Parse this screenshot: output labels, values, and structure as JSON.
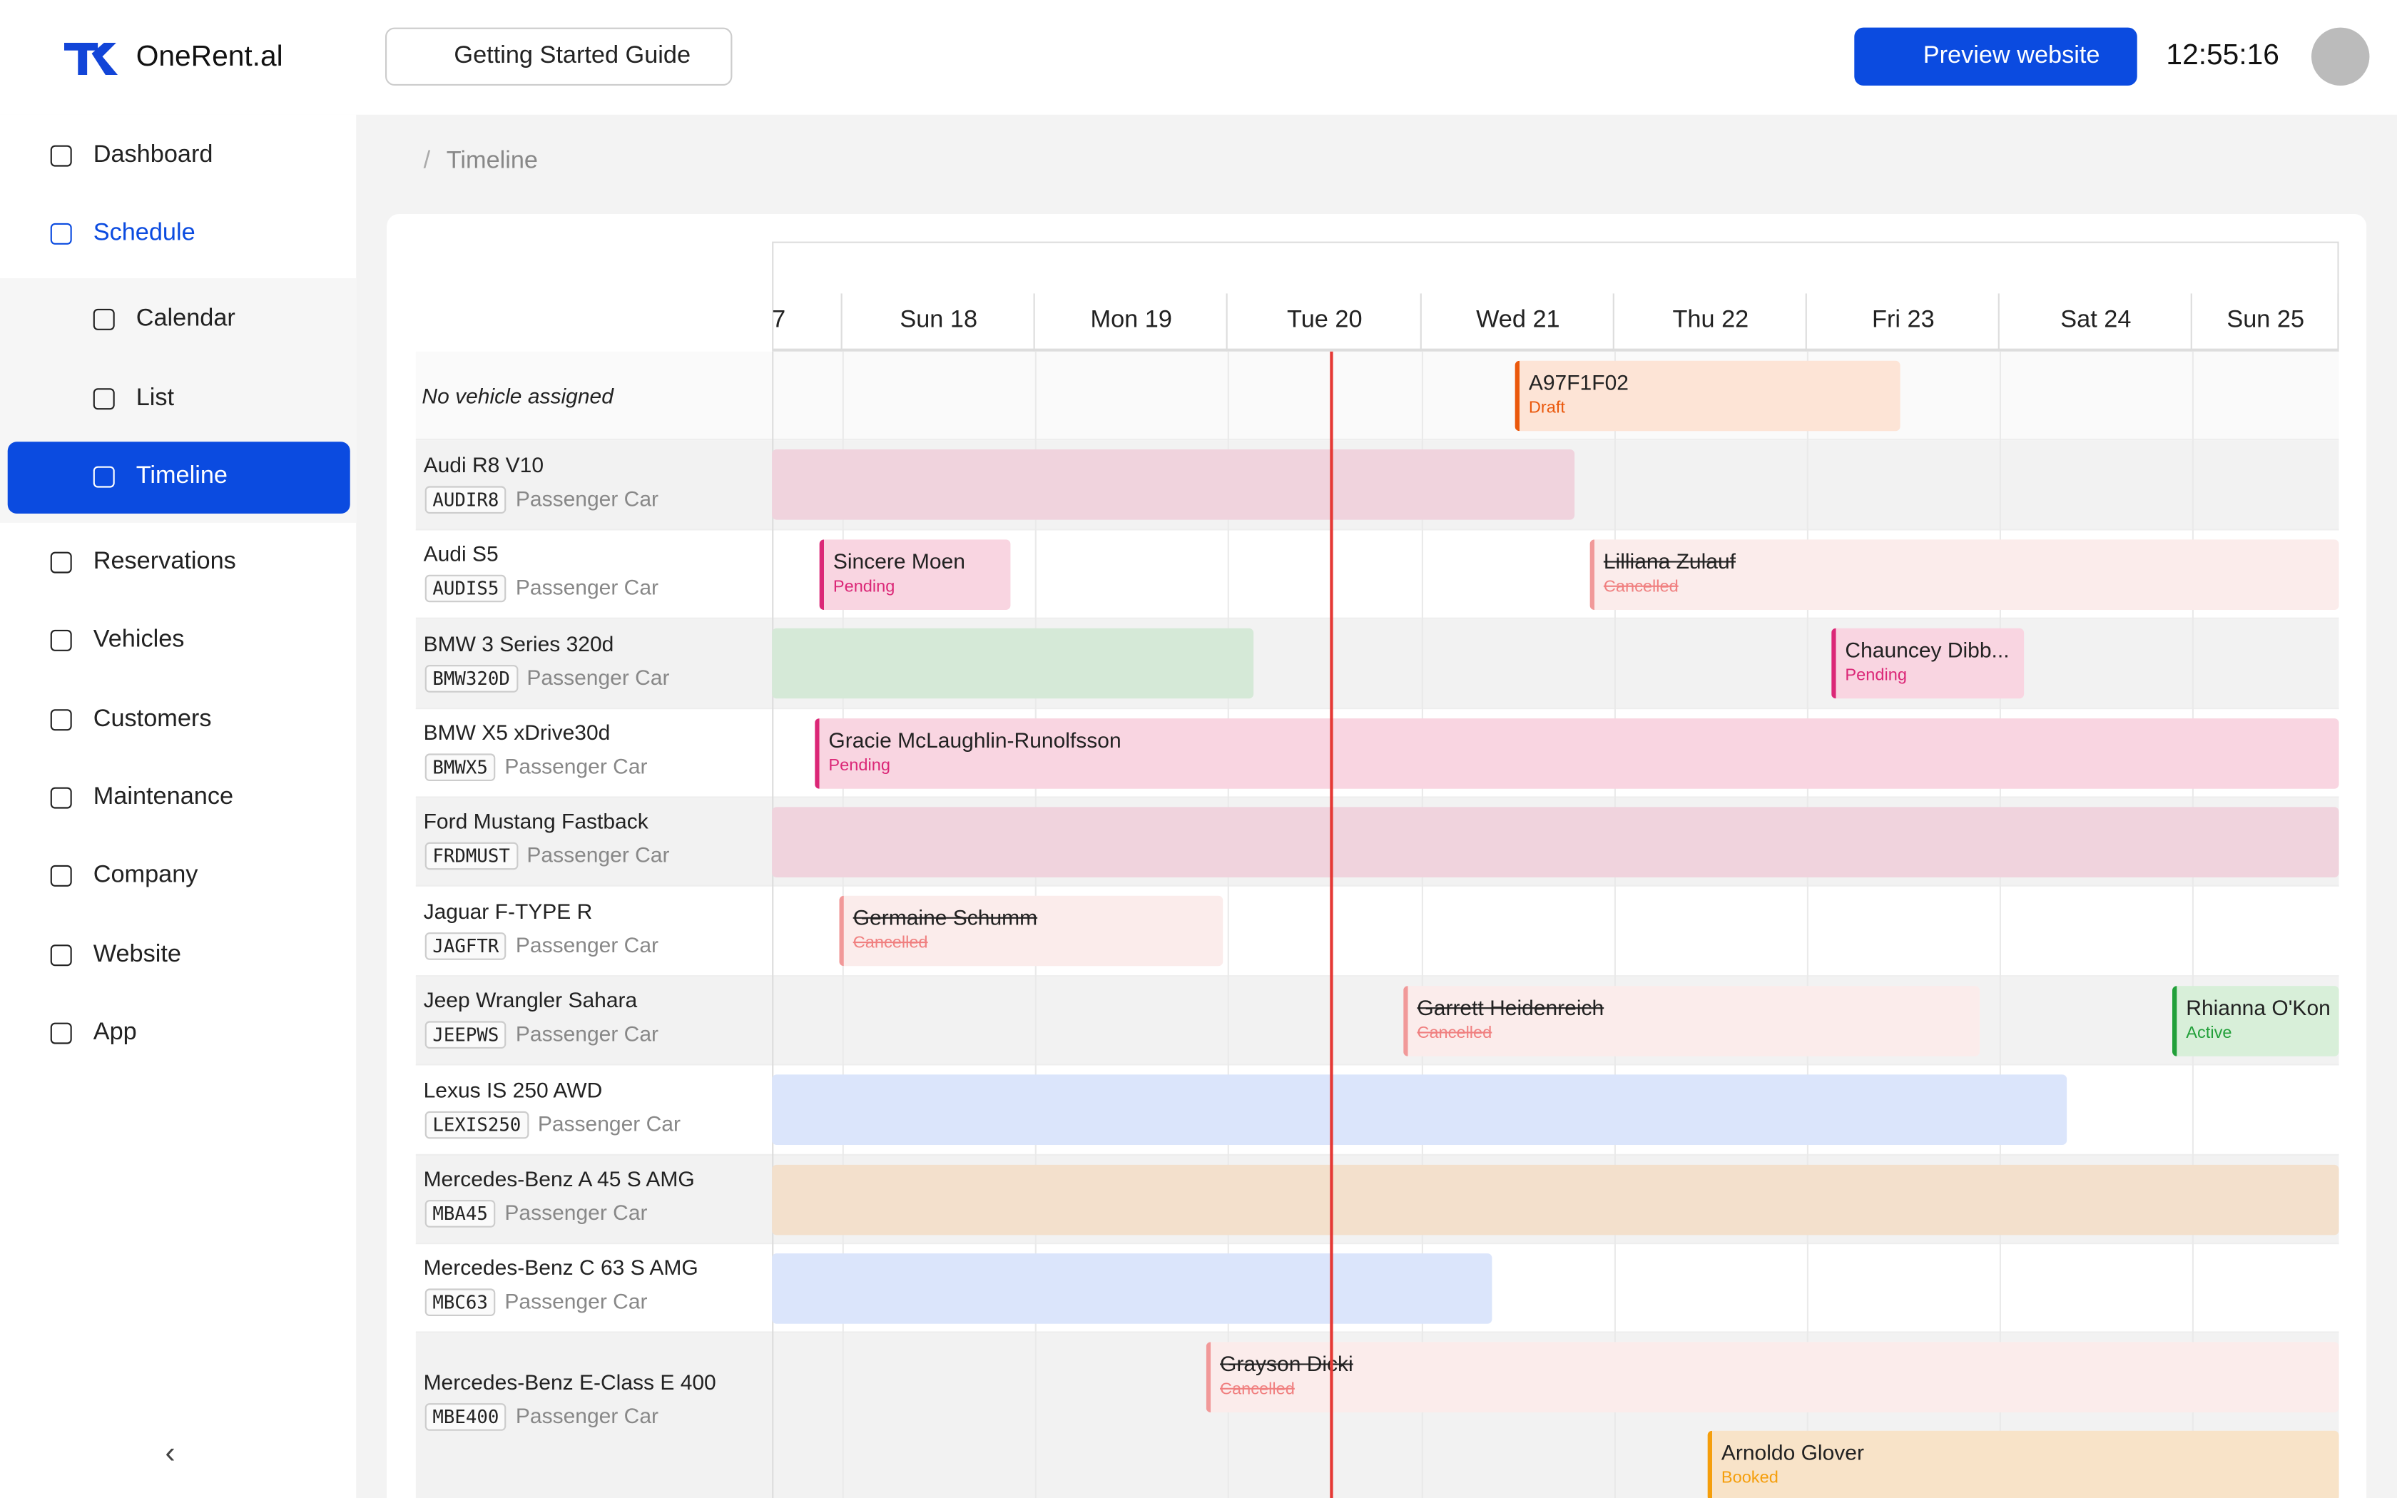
{
  "header": {
    "brand": "OneRent.al",
    "guide": "Getting Started Guide",
    "preview": "Preview website",
    "clock": "12:55:16"
  },
  "nav": [
    {
      "label": "Dashboard"
    },
    {
      "label": "Schedule"
    },
    {
      "label": "Calendar"
    },
    {
      "label": "List"
    },
    {
      "label": "Timeline"
    },
    {
      "label": "Reservations"
    },
    {
      "label": "Vehicles"
    },
    {
      "label": "Customers"
    },
    {
      "label": "Maintenance"
    },
    {
      "label": "Company"
    },
    {
      "label": "Website"
    },
    {
      "label": "App"
    }
  ],
  "breadcrumb": "Timeline",
  "timeline": {
    "days": [
      "7",
      "Sun 18",
      "Mon 19",
      "Tue 20",
      "Wed 21",
      "Thu 22",
      "Fri 23",
      "Sat 24",
      "Sun 25"
    ],
    "rows": [
      {
        "name": "No vehicle assigned",
        "bookings": [
          {
            "name": "A97F1F02",
            "status": "Draft"
          }
        ]
      },
      {
        "name": "Audi R8 V10",
        "code": "AUDIR8",
        "type": "Passenger Car",
        "bookings": []
      },
      {
        "name": "Audi S5",
        "code": "AUDIS5",
        "type": "Passenger Car",
        "bookings": [
          {
            "name": "Sincere Moen",
            "status": "Pending"
          },
          {
            "name": "Lilliana Zulauf",
            "status": "Cancelled"
          }
        ]
      },
      {
        "name": "BMW 3 Series 320d",
        "code": "BMW320D",
        "type": "Passenger Car",
        "bookings": [
          {
            "name": "Chauncey Dibb...",
            "status": "Pending"
          }
        ]
      },
      {
        "name": "BMW X5 xDrive30d",
        "code": "BMWX5",
        "type": "Passenger Car",
        "bookings": [
          {
            "name": "Gracie McLaughlin-Runolfsson",
            "status": "Pending"
          }
        ]
      },
      {
        "name": "Ford Mustang Fastback",
        "code": "FRDMUST",
        "type": "Passenger Car",
        "bookings": []
      },
      {
        "name": "Jaguar F-TYPE R",
        "code": "JAGFTR",
        "type": "Passenger Car",
        "bookings": [
          {
            "name": "Germaine Schumm",
            "status": "Cancelled"
          }
        ]
      },
      {
        "name": "Jeep Wrangler Sahara",
        "code": "JEEPWS",
        "type": "Passenger Car",
        "bookings": [
          {
            "name": "Garrett Heidenreich",
            "status": "Cancelled"
          },
          {
            "name": "Rhianna O'Kon",
            "status": "Active"
          }
        ]
      },
      {
        "name": "Lexus IS 250 AWD",
        "code": "LEXIS250",
        "type": "Passenger Car",
        "bookings": []
      },
      {
        "name": "Mercedes-Benz A 45 S AMG",
        "code": "MBA45",
        "type": "Passenger Car",
        "bookings": []
      },
      {
        "name": "Mercedes-Benz C 63 S AMG",
        "code": "MBC63",
        "type": "Passenger Car",
        "bookings": []
      },
      {
        "name": "Mercedes-Benz E-Class E 400",
        "code": "MBE400",
        "type": "Passenger Car",
        "bookings": [
          {
            "name": "Grayson Dicki",
            "status": "Cancelled"
          },
          {
            "name": "Arnoldo Glover",
            "status": "Booked"
          }
        ]
      }
    ]
  }
}
